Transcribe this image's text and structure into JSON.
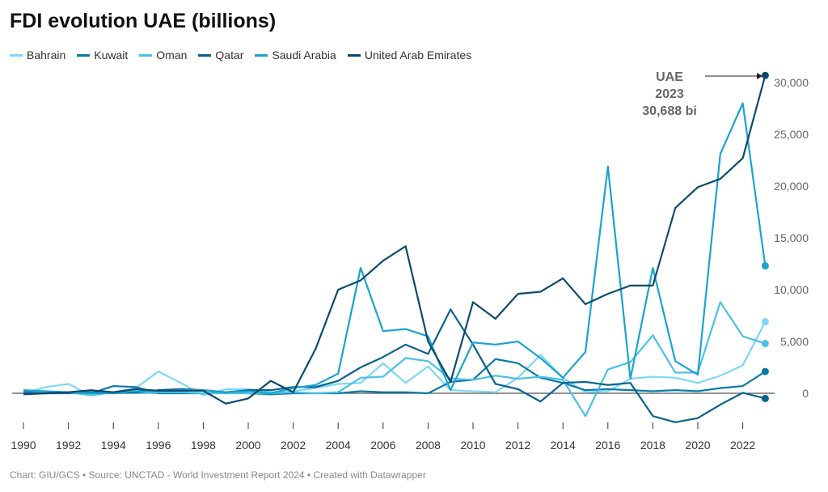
{
  "title": "FDI evolution UAE (billions)",
  "footer": "Chart: GIU/GCS • Source: UNCTAD - World Investment Report 2024 • Created with Datawrapper",
  "chart_data": {
    "type": "line",
    "title": "FDI evolution UAE (billions)",
    "x": [
      1990,
      1991,
      1992,
      1993,
      1994,
      1995,
      1996,
      1997,
      1998,
      1999,
      2000,
      2001,
      2002,
      2003,
      2004,
      2005,
      2006,
      2007,
      2008,
      2009,
      2010,
      2011,
      2012,
      2013,
      2014,
      2015,
      2016,
      2017,
      2018,
      2019,
      2020,
      2021,
      2022,
      2023
    ],
    "xticks": [
      "1990",
      "1992",
      "1994",
      "1996",
      "1998",
      "2000",
      "2002",
      "2004",
      "2006",
      "2008",
      "2010",
      "2012",
      "2014",
      "2016",
      "2018",
      "2020",
      "2022"
    ],
    "yticks": [
      "0",
      "5,000",
      "10,000",
      "15,000",
      "20,000",
      "25,000",
      "30,000"
    ],
    "ylim": [
      -3500,
      31500
    ],
    "legend": "top",
    "grid": false,
    "series": [
      {
        "name": "Bahrain",
        "color": "#7dd8f5",
        "values": [
          0,
          600,
          900,
          -200,
          100,
          500,
          2100,
          1000,
          -200,
          400,
          400,
          100,
          200,
          500,
          900,
          1000,
          2900,
          1000,
          2600,
          300,
          200,
          100,
          1500,
          3700,
          1500,
          100,
          200,
          1400,
          1600,
          1500,
          1000,
          1700,
          2700,
          6900
        ]
      },
      {
        "name": "Kuwait",
        "color": "#0a7aa8",
        "values": [
          200,
          0,
          0,
          0,
          700,
          600,
          0,
          0,
          0,
          100,
          0,
          -100,
          0,
          0,
          0,
          200,
          100,
          100,
          0,
          1100,
          1300,
          3300,
          2900,
          1500,
          1000,
          300,
          400,
          300,
          200,
          300,
          200,
          500,
          700,
          2100
        ]
      },
      {
        "name": "Oman",
        "color": "#4bc0e6",
        "values": [
          0,
          100,
          100,
          -200,
          100,
          0,
          100,
          100,
          0,
          0,
          0,
          0,
          100,
          0,
          100,
          1500,
          1600,
          3400,
          3100,
          1400,
          1300,
          1700,
          1400,
          1600,
          1300,
          -2200,
          2300,
          3000,
          5600,
          2000,
          2000,
          8800,
          5500,
          4800
        ]
      },
      {
        "name": "Qatar",
        "color": "#08628d",
        "values": [
          0,
          0,
          100,
          100,
          0,
          100,
          300,
          400,
          300,
          100,
          300,
          300,
          600,
          600,
          1200,
          2500,
          3500,
          4700,
          3800,
          8100,
          4700,
          900,
          400,
          -800,
          1000,
          1100,
          800,
          1000,
          -2200,
          -2800,
          -2400,
          -1100,
          50,
          -500
        ]
      },
      {
        "name": "Saudi Arabia",
        "color": "#1ba3cf",
        "values": [
          300,
          200,
          100,
          0,
          0,
          200,
          200,
          300,
          300,
          100,
          200,
          0,
          500,
          800,
          1900,
          12100,
          6000,
          6200,
          5500,
          300,
          4900,
          4700,
          5000,
          3400,
          1500,
          4000,
          21900,
          1400,
          12100,
          3100,
          1800,
          23100,
          28000,
          12300
        ]
      },
      {
        "name": "United Arab Emirates",
        "color": "#0c4a6e",
        "values": [
          -100,
          0,
          100,
          300,
          100,
          400,
          250,
          250,
          250,
          -1000,
          -500,
          1200,
          100,
          4300,
          10000,
          10900,
          12800,
          14200,
          5000,
          1100,
          8800,
          7200,
          9600,
          9800,
          11100,
          8600,
          9600,
          10400,
          10400,
          17900,
          19900,
          20700,
          22700,
          30688
        ]
      }
    ],
    "annotation": {
      "line1": "UAE",
      "line2": "2023",
      "line3": "30,688 bi"
    }
  }
}
